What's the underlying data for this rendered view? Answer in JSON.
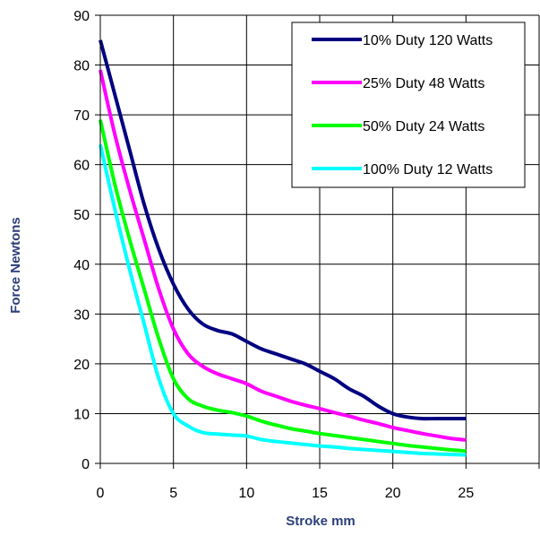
{
  "chart_data": {
    "type": "line",
    "title": "",
    "xlabel": "Stroke mm",
    "ylabel": "Force Newtons",
    "xlim": [
      0,
      30
    ],
    "ylim": [
      0,
      90
    ],
    "xticks": [
      0,
      5,
      10,
      15,
      20,
      25
    ],
    "yticks": [
      0,
      10,
      20,
      30,
      40,
      50,
      60,
      70,
      80,
      90
    ],
    "grid": true,
    "legend_position": "top-right",
    "series": [
      {
        "name": "10% Duty 120 Watts",
        "color": "#000080",
        "points": [
          [
            0,
            85
          ],
          [
            1,
            74
          ],
          [
            2,
            63
          ],
          [
            3,
            52
          ],
          [
            4,
            43
          ],
          [
            5,
            36
          ],
          [
            6,
            31
          ],
          [
            7,
            28
          ],
          [
            8,
            26.7
          ],
          [
            9,
            26
          ],
          [
            10,
            24.5
          ],
          [
            11,
            23
          ],
          [
            12,
            22
          ],
          [
            13,
            21
          ],
          [
            14,
            20
          ],
          [
            15,
            18.5
          ],
          [
            16,
            17
          ],
          [
            17,
            15
          ],
          [
            18,
            13.5
          ],
          [
            19,
            11.5
          ],
          [
            20,
            10
          ],
          [
            21,
            9.3
          ],
          [
            22,
            9
          ],
          [
            23,
            9
          ],
          [
            24,
            9
          ],
          [
            25,
            9
          ]
        ]
      },
      {
        "name": "25% Duty 48 Watts",
        "color": "#ff00ff",
        "points": [
          [
            0,
            79
          ],
          [
            1,
            66
          ],
          [
            2,
            55
          ],
          [
            3,
            45
          ],
          [
            4,
            35
          ],
          [
            5,
            27
          ],
          [
            6,
            22
          ],
          [
            7,
            19.5
          ],
          [
            8,
            18
          ],
          [
            9,
            17
          ],
          [
            10,
            16
          ],
          [
            11,
            14.5
          ],
          [
            12,
            13.5
          ],
          [
            13,
            12.5
          ],
          [
            14,
            11.7
          ],
          [
            15,
            11
          ],
          [
            16,
            10.2
          ],
          [
            17,
            9.5
          ],
          [
            18,
            8.7
          ],
          [
            19,
            8
          ],
          [
            20,
            7.2
          ],
          [
            21,
            6.6
          ],
          [
            22,
            6
          ],
          [
            23,
            5.5
          ],
          [
            24,
            5
          ],
          [
            25,
            4.7
          ]
        ]
      },
      {
        "name": "50% Duty 24 Watts",
        "color": "#00ff00",
        "points": [
          [
            0,
            69
          ],
          [
            1,
            56
          ],
          [
            2,
            45
          ],
          [
            3,
            35
          ],
          [
            4,
            25
          ],
          [
            5,
            17
          ],
          [
            6,
            13
          ],
          [
            7,
            11.5
          ],
          [
            8,
            10.7
          ],
          [
            9,
            10.2
          ],
          [
            10,
            9.5
          ],
          [
            11,
            8.5
          ],
          [
            12,
            7.7
          ],
          [
            13,
            7
          ],
          [
            14,
            6.5
          ],
          [
            15,
            6
          ],
          [
            16,
            5.6
          ],
          [
            17,
            5.2
          ],
          [
            18,
            4.8
          ],
          [
            19,
            4.4
          ],
          [
            20,
            4
          ],
          [
            21,
            3.6
          ],
          [
            22,
            3.3
          ],
          [
            23,
            3
          ],
          [
            24,
            2.7
          ],
          [
            25,
            2.5
          ]
        ]
      },
      {
        "name": "100% Duty 12 Watts",
        "color": "#00ffff",
        "points": [
          [
            0,
            64
          ],
          [
            1,
            51
          ],
          [
            2,
            39
          ],
          [
            3,
            28
          ],
          [
            4,
            17
          ],
          [
            5,
            10
          ],
          [
            6,
            7.5
          ],
          [
            7,
            6.2
          ],
          [
            8,
            5.9
          ],
          [
            9,
            5.7
          ],
          [
            10,
            5.5
          ],
          [
            11,
            4.8
          ],
          [
            12,
            4.4
          ],
          [
            13,
            4.1
          ],
          [
            14,
            3.8
          ],
          [
            15,
            3.5
          ],
          [
            16,
            3.3
          ],
          [
            17,
            3
          ],
          [
            18,
            2.8
          ],
          [
            19,
            2.6
          ],
          [
            20,
            2.4
          ],
          [
            21,
            2.2
          ],
          [
            22,
            2
          ],
          [
            23,
            1.9
          ],
          [
            24,
            1.8
          ],
          [
            25,
            1.7
          ]
        ]
      }
    ]
  }
}
